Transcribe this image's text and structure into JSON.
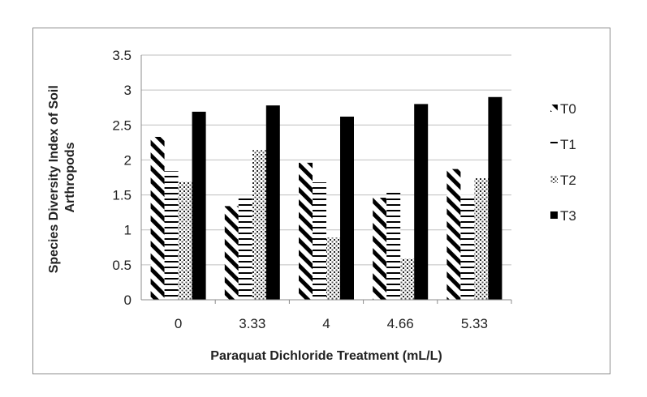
{
  "chart_data": {
    "type": "bar",
    "categories": [
      "0",
      "3.33",
      "4",
      "4.66",
      "5.33"
    ],
    "series": [
      {
        "name": "T0",
        "values": [
          2.33,
          1.34,
          1.96,
          1.46,
          1.87
        ],
        "pattern": "diagonal-stripes"
      },
      {
        "name": "T1",
        "values": [
          1.84,
          1.49,
          1.68,
          1.58,
          1.5
        ],
        "pattern": "horizontal-stripes"
      },
      {
        "name": "T2",
        "values": [
          1.69,
          2.14,
          0.89,
          0.59,
          1.74
        ],
        "pattern": "crosshatch"
      },
      {
        "name": "T3",
        "values": [
          2.69,
          2.78,
          2.62,
          2.8,
          2.9
        ],
        "pattern": "solid"
      }
    ],
    "xlabel": "Paraquat Dichloride Treatment (mL/L)",
    "ylabel_lines": [
      "Species Diversity Index of Soil",
      "Arthropods"
    ],
    "ylim": [
      0,
      3.5
    ],
    "yticks": [
      "0",
      "0.5",
      "1",
      "1.5",
      "2",
      "2.5",
      "3",
      "3.5"
    ],
    "grid": true,
    "legend_position": "right",
    "colors": {
      "bar": "#000000",
      "grid": "#bfbfbf",
      "axis": "#8c8c8c"
    }
  }
}
